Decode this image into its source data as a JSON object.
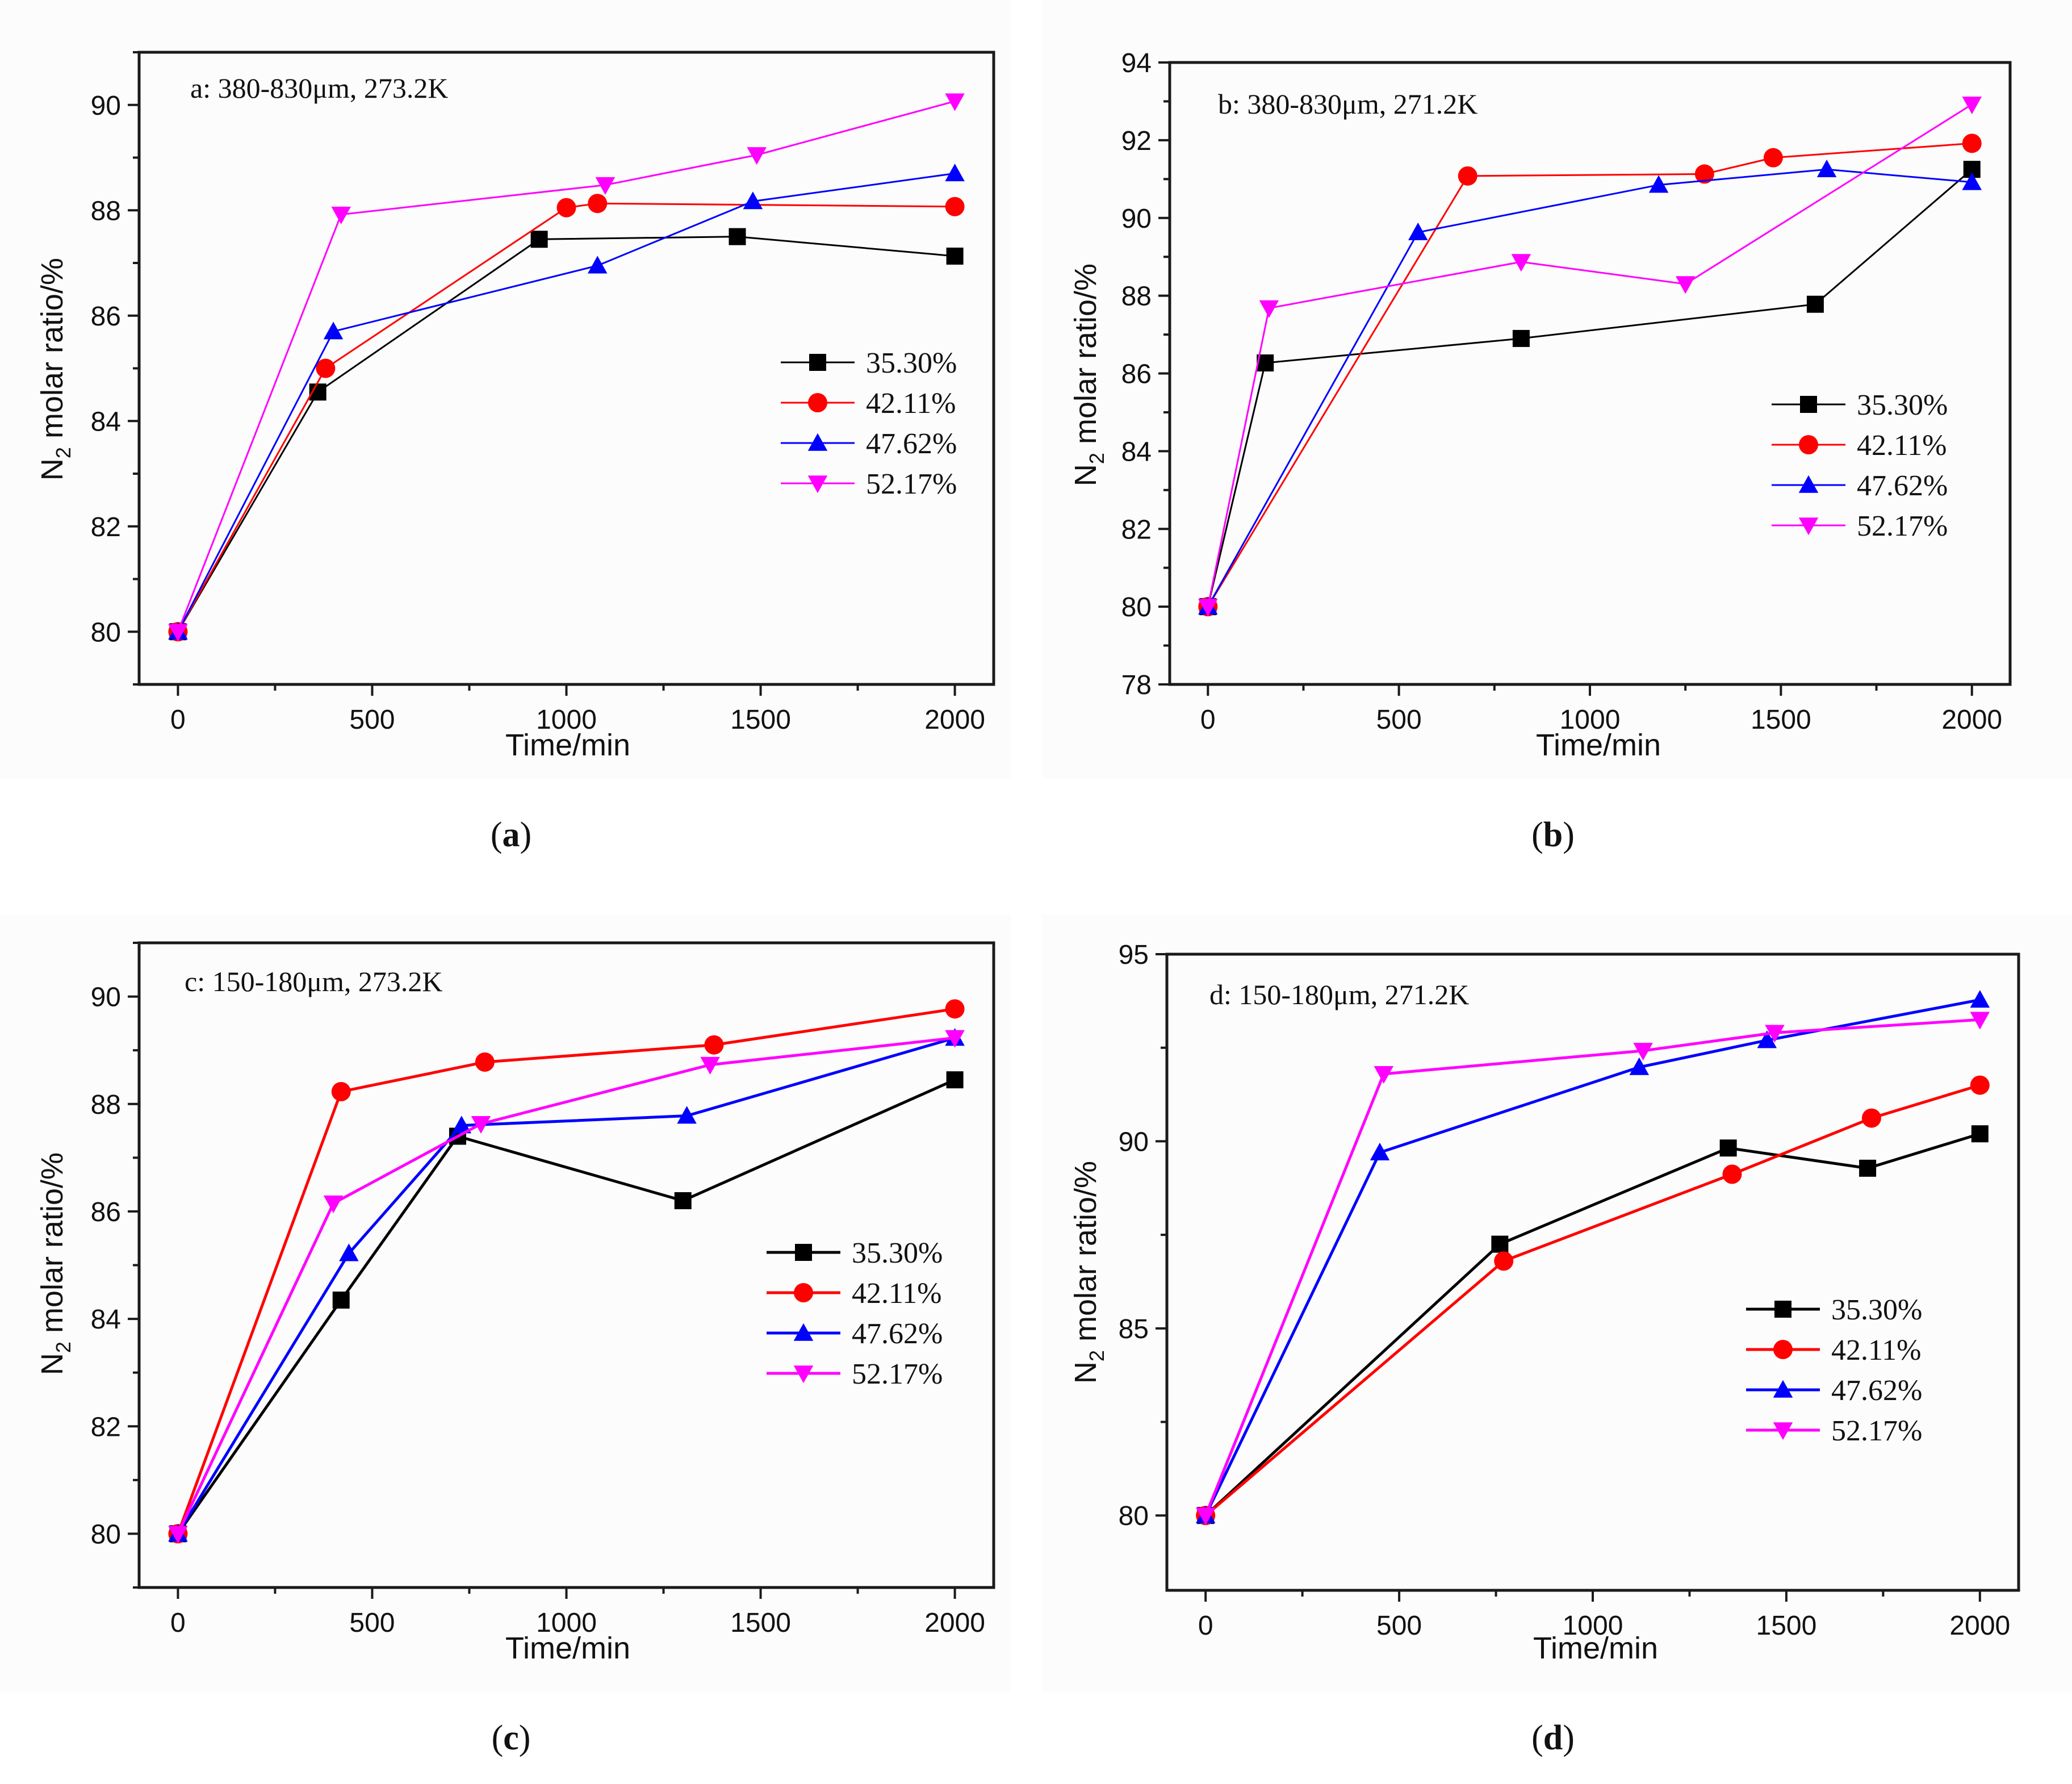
{
  "legend_entries": [
    "35.30%",
    "42.11%",
    "47.62%",
    "52.17%"
  ],
  "series_colors": [
    "#000000",
    "#ff0000",
    "#0000ff",
    "#ff00ff"
  ],
  "series_markers": [
    "square",
    "circle",
    "triangle-up",
    "triangle-down"
  ],
  "chart_data": [
    {
      "type": "line",
      "id": "a",
      "annotation": "a: 380-830μm, 273.2K",
      "caption_letter": "a",
      "xlabel": "Time/min",
      "ylabel_main": "N",
      "ylabel_sub": "2",
      "ylabel_rest": " molar ratio/%",
      "xlim": [
        -100,
        2100
      ],
      "ylim": [
        79,
        91
      ],
      "xticks": [
        0,
        500,
        1000,
        1500,
        2000
      ],
      "yticks": [
        80,
        82,
        84,
        86,
        88,
        90
      ],
      "series": [
        {
          "name": "35.30%",
          "x": [
            0,
            360,
            930,
            1440,
            2000
          ],
          "y": [
            80.0,
            84.55,
            87.45,
            87.5,
            87.13
          ]
        },
        {
          "name": "42.11%",
          "x": [
            0,
            380,
            1000,
            1080,
            2000
          ],
          "y": [
            80.0,
            85.0,
            88.05,
            88.13,
            88.07
          ]
        },
        {
          "name": "47.62%",
          "x": [
            0,
            400,
            1080,
            1480,
            2000
          ],
          "y": [
            80.0,
            85.7,
            86.95,
            88.17,
            88.7
          ]
        },
        {
          "name": "52.17%",
          "x": [
            0,
            420,
            1100,
            1490,
            2000
          ],
          "y": [
            80.0,
            87.92,
            88.48,
            89.05,
            90.07
          ]
        }
      ]
    },
    {
      "type": "line",
      "id": "b",
      "annotation": "b: 380-830μm, 271.2K",
      "caption_letter": "b",
      "xlabel": "Time/min",
      "ylabel_main": "N",
      "ylabel_sub": "2",
      "ylabel_rest": " molar ratio/%",
      "xlim": [
        -100,
        2100
      ],
      "ylim": [
        78,
        94
      ],
      "xticks": [
        0,
        500,
        1000,
        1500,
        2000
      ],
      "yticks": [
        78,
        80,
        82,
        84,
        86,
        88,
        90,
        92,
        94
      ],
      "series": [
        {
          "name": "35.30%",
          "x": [
            0,
            150,
            820,
            1590,
            2000
          ],
          "y": [
            80.0,
            86.27,
            86.9,
            87.78,
            91.25
          ]
        },
        {
          "name": "42.11%",
          "x": [
            0,
            680,
            1300,
            1480,
            2000
          ],
          "y": [
            80.0,
            91.08,
            91.13,
            91.55,
            91.92
          ]
        },
        {
          "name": "47.62%",
          "x": [
            0,
            550,
            1180,
            1620,
            2000
          ],
          "y": [
            80.0,
            89.63,
            90.85,
            91.25,
            90.92
          ]
        },
        {
          "name": "52.17%",
          "x": [
            0,
            160,
            820,
            1250,
            2000
          ],
          "y": [
            80.0,
            87.68,
            88.87,
            88.3,
            92.92
          ]
        }
      ]
    },
    {
      "type": "line",
      "id": "c",
      "annotation": "c: 150-180μm, 273.2K",
      "caption_letter": "c",
      "xlabel": "Time/min",
      "ylabel_main": "N",
      "ylabel_sub": "2",
      "ylabel_rest": " molar ratio/%",
      "xlim": [
        -100,
        2100
      ],
      "ylim": [
        79,
        91
      ],
      "xticks": [
        0,
        500,
        1000,
        1500,
        2000
      ],
      "yticks": [
        80,
        82,
        84,
        86,
        88,
        90
      ],
      "series": [
        {
          "name": "35.30%",
          "x": [
            0,
            420,
            720,
            1300,
            2000
          ],
          "y": [
            80.0,
            84.35,
            87.4,
            86.2,
            88.45
          ]
        },
        {
          "name": "42.11%",
          "x": [
            0,
            420,
            790,
            1380,
            2000
          ],
          "y": [
            80.0,
            88.23,
            88.78,
            89.1,
            89.77
          ]
        },
        {
          "name": "47.62%",
          "x": [
            0,
            440,
            730,
            1310,
            2000
          ],
          "y": [
            80.0,
            85.22,
            87.6,
            87.78,
            89.23
          ]
        },
        {
          "name": "52.17%",
          "x": [
            0,
            400,
            780,
            1370,
            2000
          ],
          "y": [
            80.0,
            86.15,
            87.63,
            88.73,
            89.23
          ]
        }
      ]
    },
    {
      "type": "line",
      "id": "d",
      "annotation": "d: 150-180μm, 271.2K",
      "caption_letter": "d",
      "xlabel": "Time/min",
      "ylabel_main": "N",
      "ylabel_sub": "2",
      "ylabel_rest": " molar ratio/%",
      "xlim": [
        -100,
        2100
      ],
      "ylim": [
        78,
        95
      ],
      "xticks": [
        0,
        500,
        1000,
        1500,
        2000
      ],
      "yticks": [
        80,
        85,
        90,
        95
      ],
      "series": [
        {
          "name": "35.30%",
          "x": [
            0,
            760,
            1350,
            1710,
            2000
          ],
          "y": [
            80.0,
            87.25,
            89.82,
            89.28,
            90.2
          ]
        },
        {
          "name": "42.11%",
          "x": [
            0,
            770,
            1360,
            1720,
            2000
          ],
          "y": [
            80.0,
            86.8,
            89.12,
            90.62,
            91.5
          ]
        },
        {
          "name": "47.62%",
          "x": [
            0,
            450,
            1120,
            1450,
            2000
          ],
          "y": [
            80.0,
            89.7,
            91.98,
            92.7,
            93.78
          ]
        },
        {
          "name": "52.17%",
          "x": [
            0,
            460,
            1130,
            1470,
            2000
          ],
          "y": [
            80.0,
            91.8,
            92.42,
            92.9,
            93.25
          ]
        }
      ]
    }
  ]
}
